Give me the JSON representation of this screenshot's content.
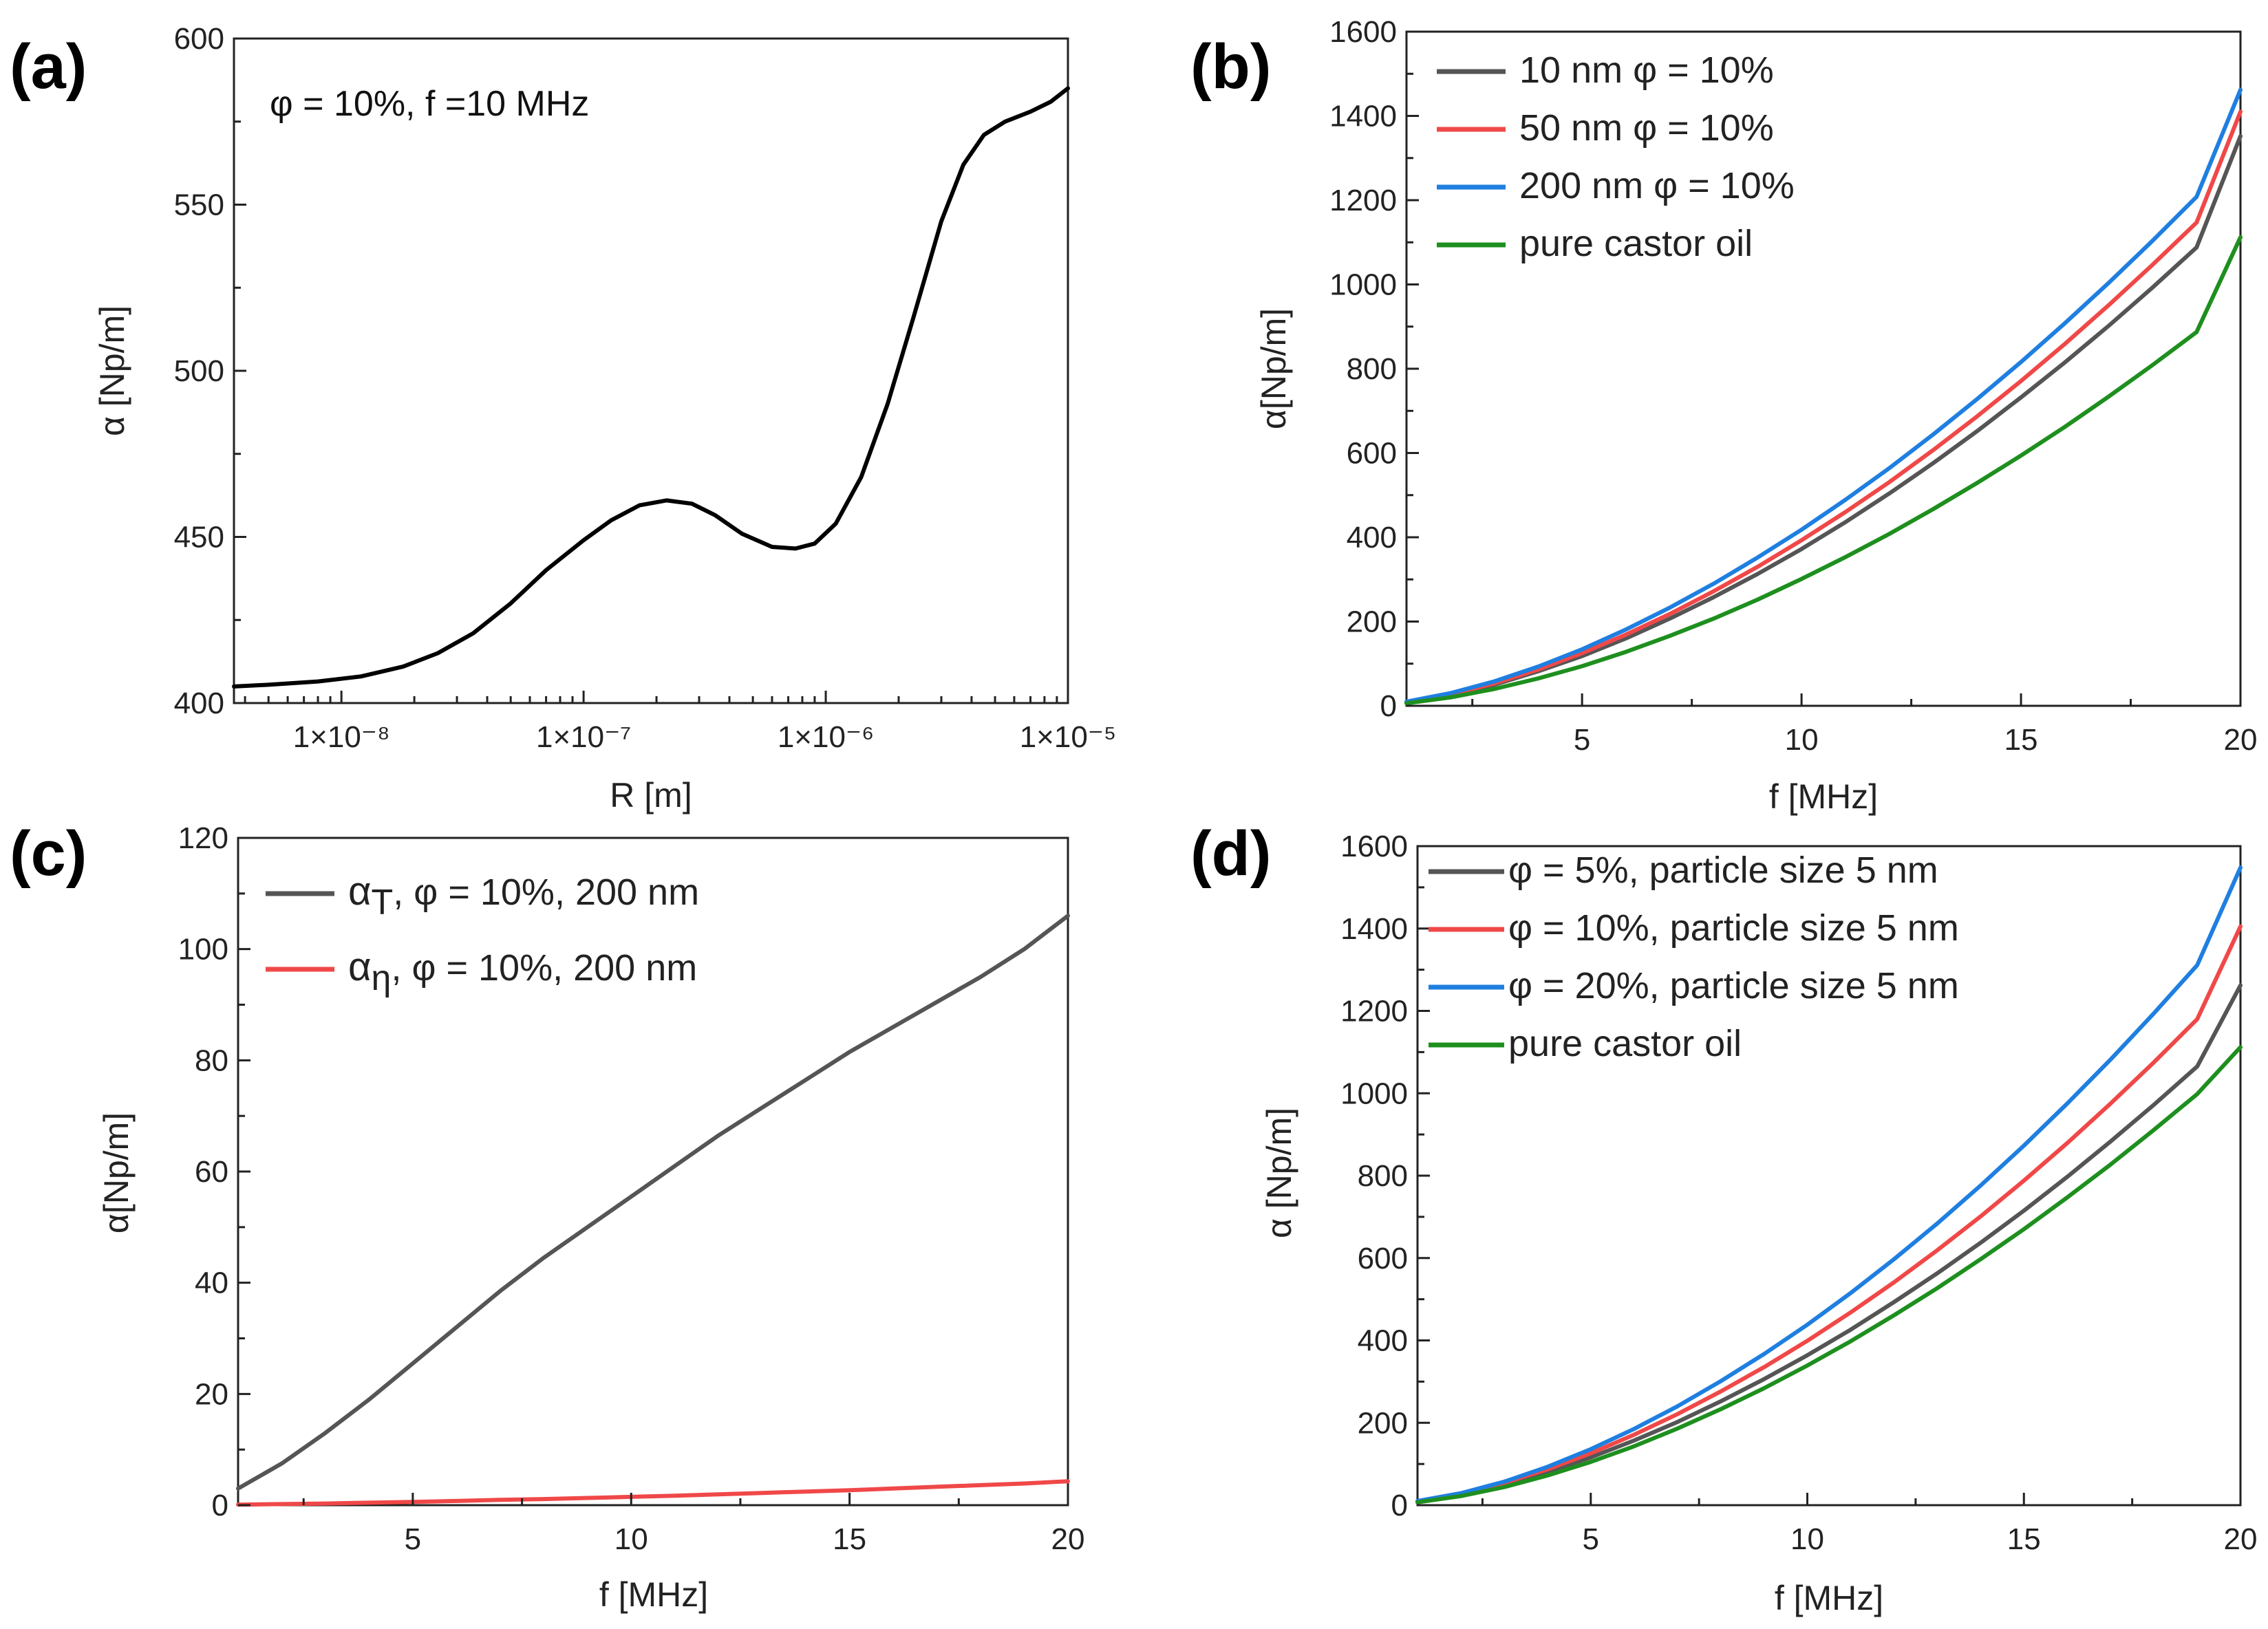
{
  "chart_data": [
    {
      "panel": "(a)",
      "type": "line",
      "title": "",
      "annotation": "φ = 10%,    f =10 MHz",
      "xlabel": "R [m]",
      "ylabel": "α [Np/m]",
      "xscale": "log",
      "xlim": [
        3.6e-09,
        1e-05
      ],
      "ylim": [
        400,
        600
      ],
      "xticks": [
        1e-08,
        1e-07,
        1e-06,
        1e-05
      ],
      "xtick_labels": [
        "1×10⁻⁸",
        "1×10⁻⁷",
        "1×10⁻⁶",
        "1×10⁻⁵"
      ],
      "yticks": [
        400,
        450,
        500,
        550,
        600
      ],
      "ytick_labels": [
        "400",
        "450",
        "500",
        "550",
        "600"
      ],
      "series": [
        {
          "name": "α",
          "color": "#000000",
          "x": [
            3.6e-09,
            5e-09,
            8e-09,
            1.2e-08,
            1.8e-08,
            2.5e-08,
            3.5e-08,
            5e-08,
            7e-08,
            1e-07,
            1.3e-07,
            1.7e-07,
            2.2e-07,
            2.8e-07,
            3.5e-07,
            4.5e-07,
            6e-07,
            7.5e-07,
            9e-07,
            1.1e-06,
            1.4e-06,
            1.8e-06,
            2.3e-06,
            3e-06,
            3.7e-06,
            4.5e-06,
            5.5e-06,
            7e-06,
            8.5e-06,
            1e-05
          ],
          "y": [
            405,
            405.5,
            406.5,
            408,
            411,
            415,
            421,
            430,
            440,
            449,
            455,
            459.5,
            461,
            460,
            456.5,
            451,
            447,
            446.5,
            448,
            454,
            468,
            490,
            516,
            545,
            562,
            571,
            575,
            578,
            581,
            585
          ]
        }
      ]
    },
    {
      "panel": "(b)",
      "type": "line",
      "title": "",
      "xlabel": "f [MHz]",
      "ylabel": "α[Np/m]",
      "xscale": "linear",
      "xlim": [
        1,
        20
      ],
      "ylim": [
        0,
        1600
      ],
      "xticks": [
        5,
        10,
        15,
        20
      ],
      "xtick_labels": [
        "5",
        "10",
        "15",
        "20"
      ],
      "yticks": [
        0,
        200,
        400,
        600,
        800,
        1000,
        1200,
        1400,
        1600
      ],
      "ytick_labels": [
        "0",
        "200",
        "400",
        "600",
        "800",
        "1000",
        "1200",
        "1400",
        "1600"
      ],
      "legend_position": "top-left",
      "series": [
        {
          "name": "10 nm φ = 10%",
          "color": "#555555",
          "x": [
            1,
            2,
            3,
            4,
            5,
            6,
            7,
            8,
            9,
            10,
            11,
            12,
            13,
            14,
            15,
            16,
            17,
            18,
            19,
            20
          ],
          "y": [
            8,
            25,
            50,
            82,
            118,
            160,
            207,
            258,
            313,
            372,
            436,
            504,
            576,
            652,
            732,
            815,
            902,
            993,
            1088,
            1352
          ]
        },
        {
          "name": "50 nm φ = 10%",
          "color": "#f04848",
          "x": [
            1,
            2,
            3,
            4,
            5,
            6,
            7,
            8,
            9,
            10,
            11,
            12,
            13,
            14,
            15,
            16,
            17,
            18,
            19,
            20
          ],
          "y": [
            9,
            27,
            53,
            86,
            125,
            169,
            218,
            272,
            330,
            393,
            460,
            531,
            607,
            687,
            771,
            859,
            951,
            1047,
            1147,
            1410
          ]
        },
        {
          "name": "200 nm φ = 10%",
          "color": "#1f7fe0",
          "x": [
            1,
            2,
            3,
            4,
            5,
            6,
            7,
            8,
            9,
            10,
            11,
            12,
            13,
            14,
            15,
            16,
            17,
            18,
            19,
            20
          ],
          "y": [
            10,
            30,
            58,
            93,
            134,
            181,
            233,
            290,
            352,
            418,
            489,
            564,
            644,
            728,
            816,
            908,
            1004,
            1104,
            1208,
            1462
          ]
        },
        {
          "name": "pure castor oil",
          "color": "#1e8f1e",
          "x": [
            1,
            2,
            3,
            4,
            5,
            6,
            7,
            8,
            9,
            10,
            11,
            12,
            13,
            14,
            15,
            16,
            17,
            18,
            19,
            20
          ],
          "y": [
            6,
            20,
            40,
            65,
            94,
            128,
            166,
            207,
            252,
            301,
            353,
            408,
            467,
            529,
            594,
            662,
            734,
            809,
            887,
            1112
          ]
        }
      ]
    },
    {
      "panel": "(c)",
      "type": "line",
      "title": "",
      "xlabel": "f [MHz]",
      "ylabel": "α[Np/m]",
      "xscale": "linear",
      "xlim": [
        1,
        20
      ],
      "ylim": [
        0,
        120
      ],
      "xticks": [
        5,
        10,
        15,
        20
      ],
      "xtick_labels": [
        "5",
        "10",
        "15",
        "20"
      ],
      "yticks": [
        0,
        20,
        40,
        60,
        80,
        100,
        120
      ],
      "ytick_labels": [
        "0",
        "20",
        "40",
        "60",
        "80",
        "100",
        "120"
      ],
      "legend_position": "top-left",
      "series": [
        {
          "name": "α",
          "subscript": "T",
          "rest": ", φ = 10%, 200 nm",
          "color": "#555555",
          "x": [
            1,
            2,
            3,
            4,
            5,
            6,
            7,
            8,
            9,
            10,
            11,
            12,
            13,
            14,
            15,
            16,
            17,
            18,
            19,
            20
          ],
          "y": [
            3,
            7.5,
            13,
            19,
            25.5,
            32,
            38.5,
            44.5,
            50,
            55.5,
            61,
            66.5,
            71.5,
            76.5,
            81.5,
            86,
            90.5,
            95,
            100,
            106
          ]
        },
        {
          "name": "α",
          "subscript": "η",
          "rest": ", φ = 10%, 200 nm",
          "color": "#f04848",
          "x": [
            1,
            2,
            3,
            4,
            5,
            6,
            7,
            8,
            9,
            10,
            11,
            12,
            13,
            14,
            15,
            16,
            17,
            18,
            19,
            20
          ],
          "y": [
            0.1,
            0.2,
            0.3,
            0.45,
            0.6,
            0.75,
            0.95,
            1.1,
            1.3,
            1.5,
            1.7,
            1.95,
            2.2,
            2.45,
            2.7,
            3.0,
            3.3,
            3.6,
            3.9,
            4.3
          ]
        }
      ]
    },
    {
      "panel": "(d)",
      "type": "line",
      "title": "",
      "xlabel": "f [MHz]",
      "ylabel": "α [Np/m]",
      "xscale": "linear",
      "xlim": [
        1,
        20
      ],
      "ylim": [
        0,
        1600
      ],
      "xticks": [
        5,
        10,
        15,
        20
      ],
      "xtick_labels": [
        "5",
        "10",
        "15",
        "20"
      ],
      "yticks": [
        0,
        200,
        400,
        600,
        800,
        1000,
        1200,
        1400,
        1600
      ],
      "ytick_labels": [
        "0",
        "200",
        "400",
        "600",
        "800",
        "1000",
        "1200",
        "1400",
        "1600"
      ],
      "legend_position": "top-left",
      "series": [
        {
          "name": "φ = 5%, particle size 5 nm",
          "color": "#555555",
          "x": [
            1,
            2,
            3,
            4,
            5,
            6,
            7,
            8,
            9,
            10,
            11,
            12,
            13,
            14,
            15,
            16,
            17,
            18,
            19,
            20
          ],
          "y": [
            8,
            25,
            50,
            80,
            116,
            157,
            202,
            252,
            306,
            364,
            426,
            493,
            563,
            637,
            715,
            797,
            883,
            972,
            1065,
            1262
          ]
        },
        {
          "name": "φ = 10%, particle size 5 nm",
          "color": "#f04848",
          "x": [
            1,
            2,
            3,
            4,
            5,
            6,
            7,
            8,
            9,
            10,
            11,
            12,
            13,
            14,
            15,
            16,
            17,
            18,
            19,
            20
          ],
          "y": [
            9,
            27,
            54,
            87,
            126,
            171,
            221,
            276,
            335,
            399,
            468,
            541,
            619,
            701,
            788,
            879,
            975,
            1075,
            1180,
            1405
          ]
        },
        {
          "name": "φ = 20%, particle size 5 nm",
          "color": "#1f7fe0",
          "x": [
            1,
            2,
            3,
            4,
            5,
            6,
            7,
            8,
            9,
            10,
            11,
            12,
            13,
            14,
            15,
            16,
            17,
            18,
            19,
            20
          ],
          "y": [
            10,
            29,
            57,
            93,
            136,
            185,
            240,
            301,
            367,
            438,
            515,
            597,
            684,
            776,
            873,
            975,
            1082,
            1194,
            1311,
            1548
          ]
        },
        {
          "name": "pure castor oil",
          "color": "#1e8f1e",
          "x": [
            1,
            2,
            3,
            4,
            5,
            6,
            7,
            8,
            9,
            10,
            11,
            12,
            13,
            14,
            15,
            16,
            17,
            18,
            19,
            20
          ],
          "y": [
            7,
            22,
            44,
            72,
            105,
            143,
            186,
            233,
            284,
            339,
            398,
            461,
            527,
            597,
            670,
            747,
            827,
            911,
            998,
            1112
          ]
        }
      ]
    }
  ]
}
